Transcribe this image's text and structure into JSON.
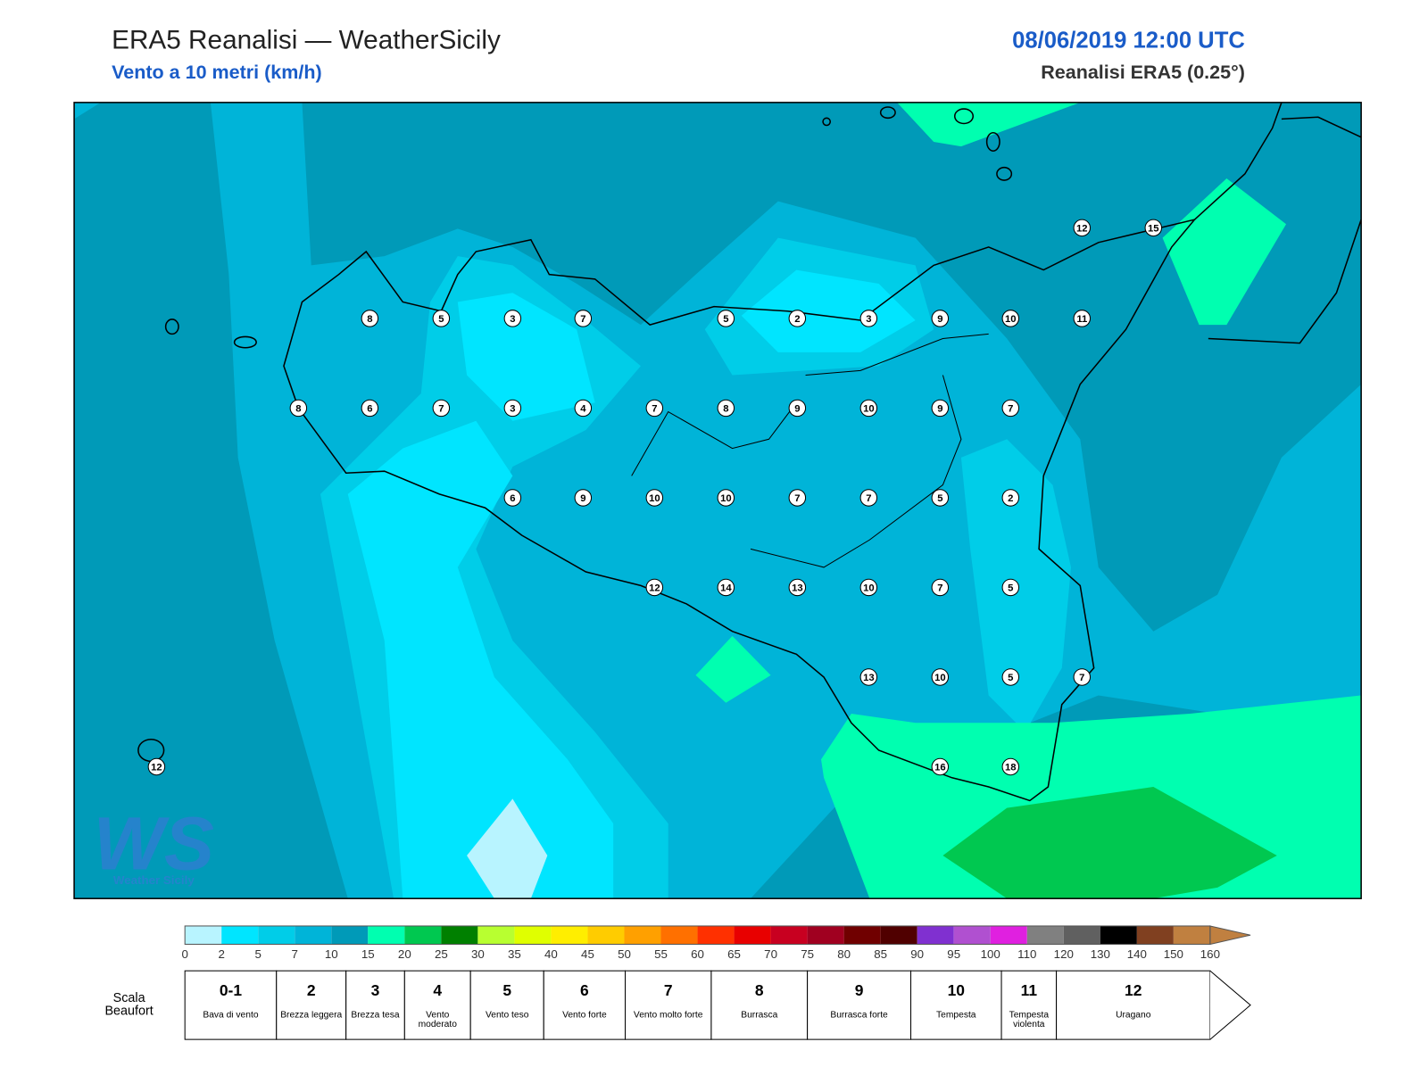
{
  "header": {
    "title": "ERA5 Reanalisi — WeatherSicily",
    "subtitle": "Vento a 10 metri (km/h)",
    "datetime": "08/06/2019 12:00 UTC",
    "source": "Reanalisi ERA5 (0.25°)"
  },
  "map": {
    "stations": [
      12,
      15,
      8,
      5,
      3,
      7,
      5,
      2,
      3,
      9,
      10,
      11,
      8,
      6,
      7,
      3,
      4,
      7,
      8,
      9,
      10,
      9,
      7,
      6,
      9,
      10,
      10,
      7,
      7,
      5,
      2,
      12,
      14,
      13,
      10,
      7,
      5,
      13,
      10,
      5,
      7,
      16,
      18,
      12
    ]
  },
  "logo": {
    "mark": "WS",
    "name": "Weather Sicily"
  },
  "colorbar": {
    "ticks": [
      0,
      2,
      5,
      7,
      10,
      15,
      20,
      25,
      30,
      35,
      40,
      45,
      50,
      55,
      60,
      65,
      70,
      75,
      80,
      85,
      90,
      95,
      100,
      110,
      120,
      130,
      140,
      150,
      160
    ],
    "colors": [
      "#b8f4ff",
      "#00e5ff",
      "#00cde8",
      "#00b4d8",
      "#009ab8",
      "#00ffb0",
      "#00c850",
      "#008000",
      "#b8ff30",
      "#e0ff00",
      "#ffee00",
      "#ffcc00",
      "#ffa000",
      "#ff7000",
      "#ff3000",
      "#e80000",
      "#c80020",
      "#a00020",
      "#700000",
      "#500000",
      "#8030d0",
      "#b050d0",
      "#e020e0",
      "#808080",
      "#606060",
      "#000000",
      "#804020",
      "#c08040"
    ]
  },
  "beaufort": {
    "label": "Scala Beaufort",
    "levels": [
      {
        "force": "0-1",
        "name": "Bava di vento"
      },
      {
        "force": 2,
        "name": "Brezza leggera"
      },
      {
        "force": 3,
        "name": "Brezza tesa"
      },
      {
        "force": 4,
        "name": "Vento moderato"
      },
      {
        "force": 5,
        "name": "Vento teso"
      },
      {
        "force": 6,
        "name": "Vento forte"
      },
      {
        "force": 7,
        "name": "Vento molto forte"
      },
      {
        "force": 8,
        "name": "Burrasca"
      },
      {
        "force": 9,
        "name": "Burrasca forte"
      },
      {
        "force": 10,
        "name": "Tempesta"
      },
      {
        "force": 11,
        "name": "Tempesta violenta"
      },
      {
        "force": 12,
        "name": "Uragano"
      }
    ]
  }
}
